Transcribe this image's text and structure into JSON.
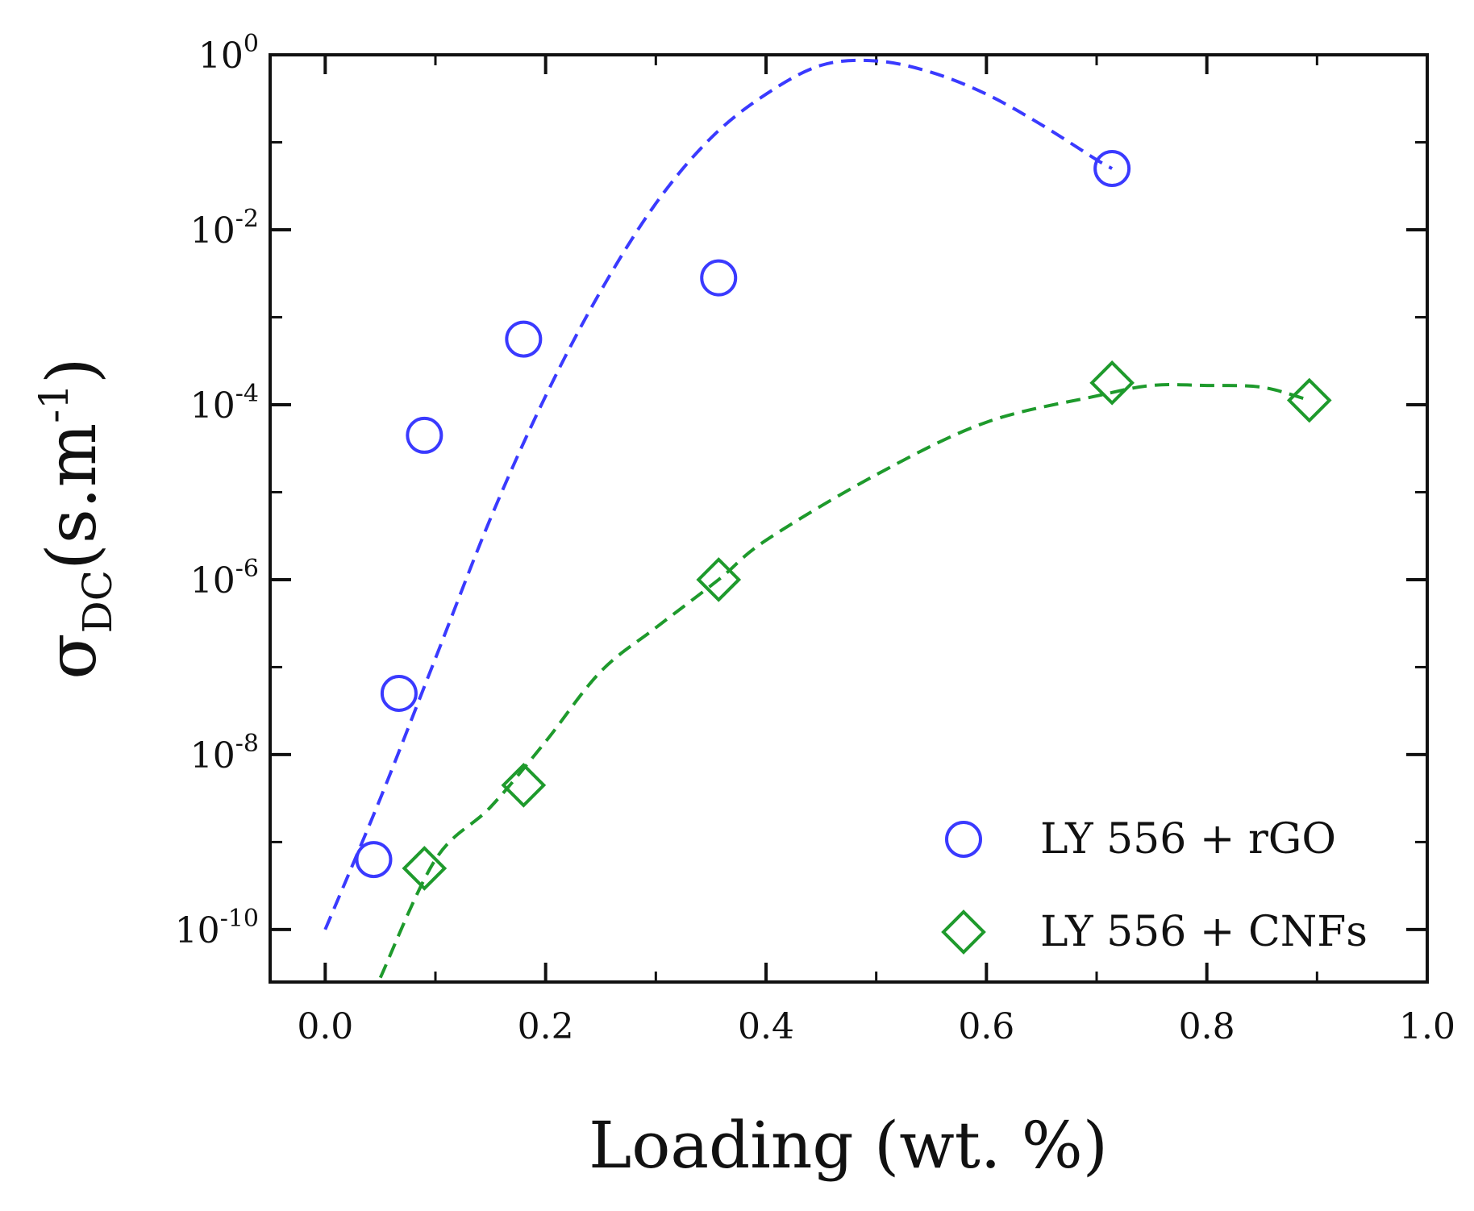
{
  "chart_data": {
    "type": "scatter",
    "xlabel": "Loading (wt. %)",
    "ylabel": {
      "symbol": "σ",
      "subscript": "DC",
      "unit_open": "(s.m",
      "unit_exp": "-1",
      "unit_close": ")"
    },
    "xlim": [
      -0.05,
      1.0
    ],
    "ylim_log10": [
      -10.6,
      0
    ],
    "yscale": "log",
    "xticks": [
      0.0,
      0.2,
      0.4,
      0.6,
      0.8,
      1.0
    ],
    "xtick_labels": [
      "0.0",
      "0.2",
      "0.4",
      "0.6",
      "0.8",
      "1.0"
    ],
    "yticks_log10": [
      -10,
      -8,
      -6,
      -4,
      -2,
      0
    ],
    "ytick_labels": [
      {
        "base": "10",
        "exp": "-10"
      },
      {
        "base": "10",
        "exp": "-8"
      },
      {
        "base": "10",
        "exp": "-6"
      },
      {
        "base": "10",
        "exp": "-4"
      },
      {
        "base": "10",
        "exp": "-2"
      },
      {
        "base": "10",
        "exp": "0"
      }
    ],
    "legend_position": "bottom-right",
    "series": [
      {
        "name": "LY 556 + rGO",
        "marker": "circle",
        "color": "#3a3aff",
        "x": [
          0.044,
          0.067,
          0.09,
          0.18,
          0.357,
          0.714
        ],
        "y_log10": [
          -9.2,
          -7.3,
          -4.35,
          -3.25,
          -2.55,
          -1.3
        ],
        "fit": {
          "style": "dashed",
          "x": [
            0.0,
            0.05,
            0.1,
            0.15,
            0.2,
            0.25,
            0.3,
            0.35,
            0.4,
            0.45,
            0.5,
            0.55,
            0.6,
            0.65,
            0.7,
            0.714
          ],
          "y_log10": [
            -10.0,
            -8.5,
            -6.9,
            -5.3,
            -3.9,
            -2.7,
            -1.7,
            -0.95,
            -0.45,
            -0.12,
            -0.07,
            -0.2,
            -0.45,
            -0.8,
            -1.2,
            -1.3
          ]
        }
      },
      {
        "name": "LY 556 + CNFs",
        "marker": "diamond",
        "color": "#1e9a2c",
        "x": [
          0.09,
          0.18,
          0.357,
          0.714,
          0.893
        ],
        "y_log10": [
          -9.3,
          -8.35,
          -6.0,
          -3.75,
          -3.95
        ],
        "fit": {
          "style": "dashed",
          "x": [
            0.05,
            0.1,
            0.15,
            0.2,
            0.25,
            0.3,
            0.357,
            0.4,
            0.5,
            0.6,
            0.7,
            0.75,
            0.8,
            0.85,
            0.893
          ],
          "y_log10": [
            -10.55,
            -9.2,
            -8.6,
            -7.85,
            -7.05,
            -6.55,
            -6.0,
            -5.55,
            -4.8,
            -4.2,
            -3.9,
            -3.78,
            -3.78,
            -3.8,
            -3.95
          ]
        }
      }
    ]
  }
}
